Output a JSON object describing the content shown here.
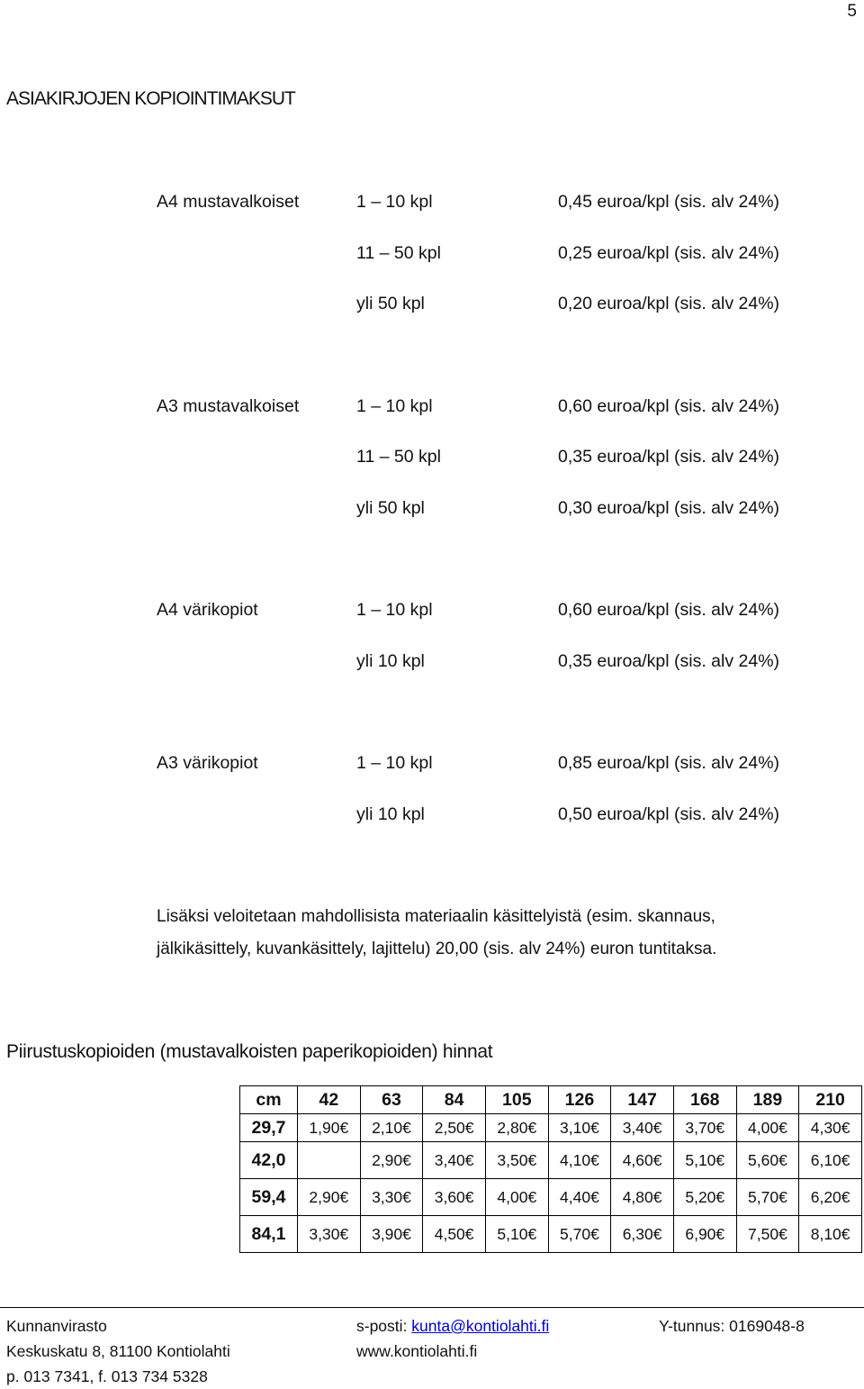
{
  "page_number": "5",
  "title": "ASIAKIRJOJEN KOPIOINTIMAKSUT",
  "prices": [
    {
      "category": "A4 mustavalkoiset",
      "rows": [
        {
          "qty": "1 – 10 kpl",
          "price": "0,45 euroa/kpl (sis. alv 24%)"
        },
        {
          "qty": "11 – 50 kpl",
          "price": "0,25 euroa/kpl (sis. alv 24%)"
        },
        {
          "qty": "yli 50 kpl",
          "price": "0,20 euroa/kpl (sis. alv 24%)"
        }
      ]
    },
    {
      "category": "A3 mustavalkoiset",
      "rows": [
        {
          "qty": "1 – 10 kpl",
          "price": "0,60 euroa/kpl (sis. alv 24%)"
        },
        {
          "qty": "11 – 50 kpl",
          "price": "0,35 euroa/kpl (sis. alv 24%)"
        },
        {
          "qty": "yli 50 kpl",
          "price": "0,30 euroa/kpl (sis. alv 24%)"
        }
      ]
    },
    {
      "category": "A4 värikopiot",
      "rows": [
        {
          "qty": "1 – 10 kpl",
          "price": "0,60 euroa/kpl (sis. alv 24%)"
        },
        {
          "qty": "yli 10 kpl",
          "price": "0,35 euroa/kpl (sis. alv 24%)"
        }
      ]
    },
    {
      "category": "A3 värikopiot",
      "rows": [
        {
          "qty": "1 – 10 kpl",
          "price": "0,85 euroa/kpl (sis. alv 24%)"
        },
        {
          "qty": "yli 10 kpl",
          "price": "0,50 euroa/kpl (sis. alv 24%)"
        }
      ]
    }
  ],
  "note_line1": "Lisäksi veloitetaan mahdollisista materiaalin käsittelyistä (esim. skannaus,",
  "note_line2": "jälkikäsittely, kuvankäsittely, lajittelu) 20,00 (sis. alv 24%) euron tuntitaksa.",
  "drawings_title": "Piirustuskopioiden (mustavalkoisten paperikopioiden) hinnat",
  "drawings_table": {
    "header": [
      "cm",
      "42",
      "63",
      "84",
      "105",
      "126",
      "147",
      "168",
      "189",
      "210"
    ],
    "rows": [
      {
        "h": "29,7",
        "cells": [
          "1,90€",
          "2,10€",
          "2,50€",
          "2,80€",
          "3,10€",
          "3,40€",
          "3,70€",
          "4,00€",
          "4,30€"
        ]
      },
      {
        "h": "42,0",
        "cells": [
          "",
          "2,90€",
          "3,40€",
          "3,50€",
          "4,10€",
          "4,60€",
          "5,10€",
          "5,60€",
          "6,10€"
        ]
      },
      {
        "h": "59,4",
        "cells": [
          "2,90€",
          "3,30€",
          "3,60€",
          "4,00€",
          "4,40€",
          "4,80€",
          "5,20€",
          "5,70€",
          "6,20€"
        ]
      },
      {
        "h": "84,1",
        "cells": [
          "3,30€",
          "3,90€",
          "4,50€",
          "5,10€",
          "5,70€",
          "6,30€",
          "6,90€",
          "7,50€",
          "8,10€"
        ]
      }
    ]
  },
  "footer": {
    "office": "Kunnanvirasto",
    "address": "Keskuskatu 8, 81100 Kontiolahti",
    "phone": "p. 013 7341, f. 013 734 5328",
    "email_label": "s-posti: ",
    "email": "kunta@kontiolahti.fi",
    "web": "www.kontiolahti.fi",
    "business_id": "Y-tunnus: 0169048-8"
  }
}
